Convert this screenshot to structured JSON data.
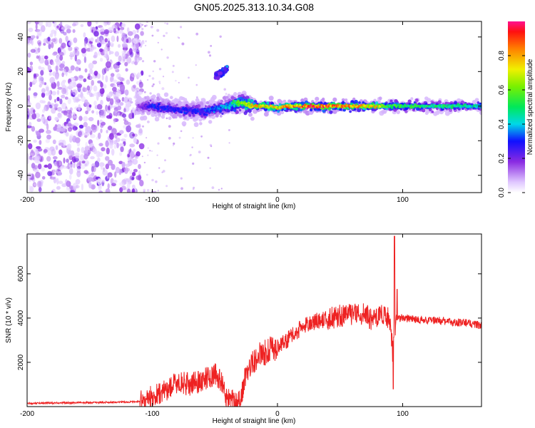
{
  "chart_data": [
    {
      "type": "heatmap",
      "title": "GN05.2025.313.10.34.G08",
      "xlabel": "Height of straight line (km)",
      "ylabel": "Frequency (Hz)",
      "xlim": [
        -200,
        163
      ],
      "ylim": [
        -50,
        49
      ],
      "x_ticks": [
        "-200",
        "-100",
        "0",
        "100"
      ],
      "x_tick_values": [
        -200,
        -100,
        0,
        100
      ],
      "y_ticks": [
        "-40",
        "-20",
        "0",
        "20",
        "40"
      ],
      "y_tick_values": [
        -40,
        -20,
        0,
        20,
        40
      ],
      "colorbar": {
        "label": "Normalized spectral amplitude",
        "range": [
          0,
          1
        ],
        "ticks": [
          "0.0",
          "0.2",
          "0.4",
          "0.6",
          "0.8"
        ],
        "tick_values": [
          0.0,
          0.2,
          0.4,
          0.6,
          0.8
        ]
      },
      "noise_region_x": [
        -200,
        -108
      ],
      "main_band": [
        {
          "x": -112,
          "freq": 0,
          "amp": 0.15
        },
        {
          "x": -100,
          "freq": 0,
          "amp": 0.3
        },
        {
          "x": -80,
          "freq": -2,
          "amp": 0.3
        },
        {
          "x": -60,
          "freq": -3,
          "amp": 0.3
        },
        {
          "x": -40,
          "freq": 0,
          "amp": 0.4
        },
        {
          "x": -30,
          "freq": 2,
          "amp": 0.6
        },
        {
          "x": -20,
          "freq": 0,
          "amp": 0.75
        },
        {
          "x": -10,
          "freq": 0,
          "amp": 0.8
        },
        {
          "x": 0,
          "freq": -1,
          "amp": 0.75
        },
        {
          "x": 10,
          "freq": 0,
          "amp": 0.85
        },
        {
          "x": 20,
          "freq": 0,
          "amp": 0.95
        },
        {
          "x": 40,
          "freq": 0,
          "amp": 0.9
        },
        {
          "x": 60,
          "freq": 0,
          "amp": 0.85
        },
        {
          "x": 80,
          "freq": 0,
          "amp": 0.75
        },
        {
          "x": 90,
          "freq": 0,
          "amp": 0.55
        },
        {
          "x": 110,
          "freq": 0,
          "amp": 0.55
        },
        {
          "x": 140,
          "freq": 0,
          "amp": 0.5
        },
        {
          "x": 163,
          "freq": 0,
          "amp": 0.45
        }
      ],
      "side_branch": [
        {
          "x": -50,
          "freq": 17,
          "amp": 0.25
        },
        {
          "x": -45,
          "freq": 19,
          "amp": 0.3
        },
        {
          "x": -40,
          "freq": 22,
          "amp": 0.35
        }
      ]
    },
    {
      "type": "line",
      "xlabel": "Height of straight line (km)",
      "ylabel": "SNR (10 * v/v)",
      "xlim": [
        -200,
        163
      ],
      "ylim": [
        0,
        7800
      ],
      "x_ticks": [
        "-200",
        "-100",
        "0",
        "100"
      ],
      "x_tick_values": [
        -200,
        -100,
        0,
        100
      ],
      "y_ticks": [
        "2000",
        "4000",
        "6000"
      ],
      "y_tick_values": [
        2000,
        4000,
        6000
      ],
      "color": "#ee2222",
      "series": [
        {
          "name": "SNR",
          "x": [
            -200,
            -170,
            -140,
            -110,
            -100,
            -90,
            -80,
            -70,
            -60,
            -50,
            -45,
            -40,
            -30,
            -25,
            -20,
            -15,
            -10,
            0,
            10,
            20,
            30,
            40,
            50,
            60,
            70,
            75,
            80,
            85,
            90,
            92,
            95,
            100,
            110,
            120,
            130,
            140,
            150,
            163
          ],
          "values": [
            150,
            170,
            190,
            220,
            450,
            700,
            1100,
            1000,
            1200,
            1450,
            1150,
            300,
            250,
            1500,
            2000,
            2300,
            2450,
            2700,
            3100,
            3600,
            3850,
            3950,
            4100,
            4200,
            4200,
            3950,
            4050,
            4100,
            3900,
            2500,
            4000,
            4000,
            3950,
            3900,
            3900,
            3800,
            3800,
            3650
          ],
          "peaks": [
            {
              "x": 93.5,
              "value": 7700
            },
            {
              "x": 95.5,
              "value": 5300
            },
            {
              "x": 92.5,
              "value": 800
            }
          ]
        }
      ]
    }
  ]
}
